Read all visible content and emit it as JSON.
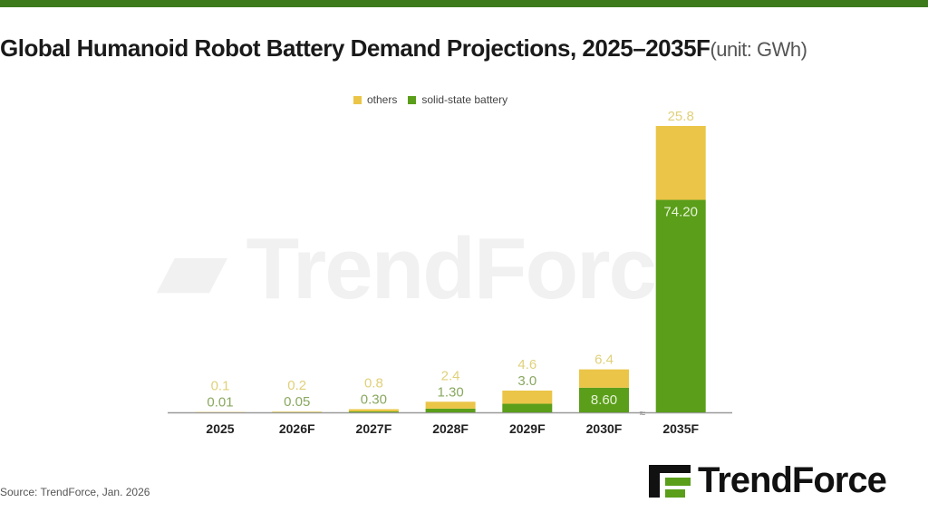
{
  "title": "Global Humanoid Robot Battery Demand Projections, 2025–2035F",
  "unit": "(unit: GWh)",
  "source": "Source: TrendForce, Jan. 2026",
  "brand": "TrendForce",
  "colors": {
    "others": "#ebc547",
    "solid": "#5a9e1a",
    "topbar": "#3c7a1c"
  },
  "chart_data": {
    "type": "bar",
    "stacked": true,
    "title": "Global Humanoid Robot Battery Demand Projections, 2025–2035F",
    "ylabel": "GWh",
    "categories": [
      "2025",
      "2026F",
      "2027F",
      "2028F",
      "2029F",
      "2030F",
      "2035F"
    ],
    "series": [
      {
        "name": "solid-state battery",
        "values": [
          0.01,
          0.05,
          0.3,
          1.3,
          3.0,
          8.6,
          74.2
        ],
        "labels": [
          "0.01",
          "0.05",
          "0.30",
          "1.30",
          "3.0",
          "8.60",
          "74.20"
        ]
      },
      {
        "name": "others",
        "values": [
          0.1,
          0.2,
          0.8,
          2.4,
          4.6,
          6.4,
          25.8
        ],
        "labels": [
          "0.1",
          "0.2",
          "0.8",
          "2.4",
          "4.6",
          "6.4",
          "25.8"
        ]
      }
    ],
    "axis_break_before": "2035F",
    "legend": "top-center"
  }
}
